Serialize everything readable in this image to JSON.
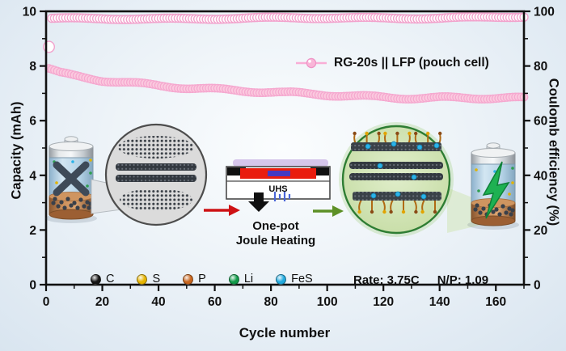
{
  "chart_data": {
    "type": "scatter",
    "title": "",
    "xlabel": "Cycle number",
    "ylabel_left": "Capacity (mAh)",
    "ylabel_right": "Coulomb efficiency (%)",
    "legend_label": "RG-20s || LFP (pouch cell)",
    "xlim": [
      0,
      170
    ],
    "x_major_ticks": [
      0,
      20,
      40,
      60,
      80,
      100,
      120,
      140,
      160
    ],
    "x_minor_step": 10,
    "ylim_left": [
      0,
      10
    ],
    "y_left_major_ticks": [
      0,
      2,
      4,
      6,
      8,
      10
    ],
    "y_left_minor_step": 1,
    "ylim_right": [
      0,
      100
    ],
    "y_right_major_ticks": [
      0,
      20,
      40,
      60,
      80,
      100
    ],
    "y_right_minor_step": 10,
    "grid": false,
    "legend_position": "inside upper right",
    "series": [
      {
        "name": "Capacity",
        "axis": "left",
        "units": "mAh",
        "marker": "filled-circle",
        "fill": "#fbcadf",
        "stroke": "#f5a8cf",
        "x": [
          1,
          5,
          10,
          20,
          30,
          45,
          60,
          85,
          110,
          140,
          170
        ],
        "y": [
          7.87,
          7.7,
          7.6,
          7.46,
          7.38,
          7.28,
          7.16,
          6.98,
          6.9,
          6.85,
          6.78
        ]
      },
      {
        "name": "Coulomb efficiency",
        "axis": "right",
        "units": "%",
        "marker": "open-circle",
        "fill": "#ffffff",
        "stroke": "#f2a2cc",
        "x": [
          1,
          2,
          20,
          60,
          100,
          140,
          170
        ],
        "y": [
          87,
          97.2,
          97.4,
          97.4,
          97.5,
          97.7,
          98.0
        ]
      }
    ]
  },
  "inset": {
    "uhs_label": "UHS",
    "process_label_line1": "One-pot",
    "process_label_line2": "Joule Heating",
    "rate_label": "Rate: 3.75C",
    "np_label": "N/P: 1.09",
    "atoms": [
      {
        "label": "C",
        "color": "#151515"
      },
      {
        "label": "S",
        "color": "#e6b400"
      },
      {
        "label": "P",
        "color": "#c8651d"
      },
      {
        "label": "Li",
        "color": "#119a49"
      },
      {
        "label": "FeS",
        "color": "#21a9de"
      }
    ]
  }
}
